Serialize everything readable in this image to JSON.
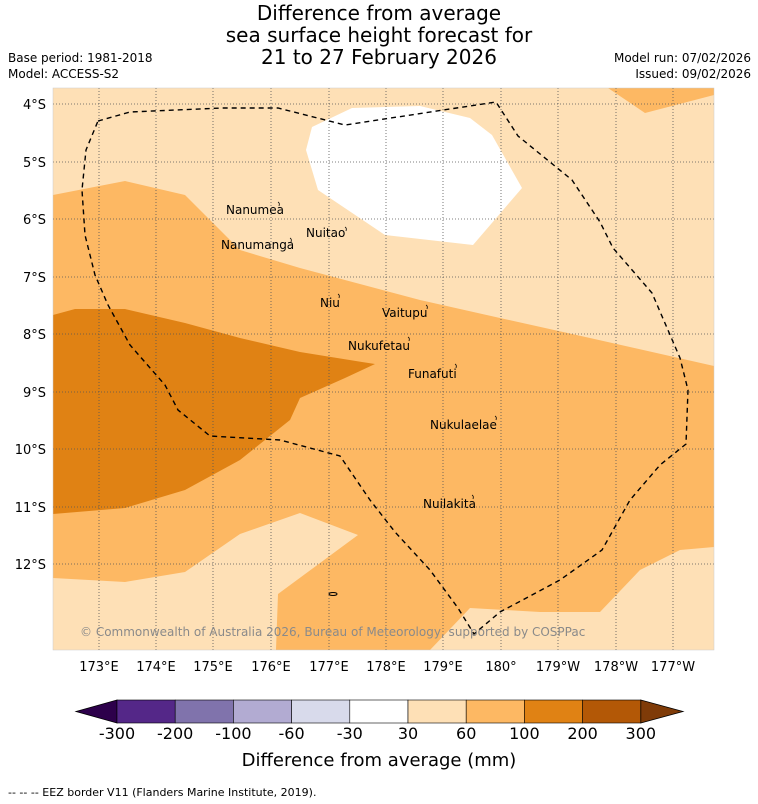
{
  "title": {
    "line1": "Difference from average",
    "line2": "sea surface height forecast for",
    "line3": "21 to 27 February 2026"
  },
  "meta": {
    "base_period": "Base period: 1981-2018",
    "model": "Model: ACCESS-S2",
    "model_run": "Model run: 07/02/2026",
    "issued": "Issued: 09/02/2026"
  },
  "map": {
    "lat_labels": [
      "4°S",
      "5°S",
      "6°S",
      "7°S",
      "8°S",
      "9°S",
      "10°S",
      "11°S",
      "12°S"
    ],
    "lon_labels": [
      "173°E",
      "174°E",
      "175°E",
      "176°E",
      "177°E",
      "178°E",
      "179°E",
      "180°",
      "179°W",
      "178°W",
      "177°W"
    ],
    "places": [
      {
        "name": "Nanumea"
      },
      {
        "name": "Nuitao"
      },
      {
        "name": "Nanumanga"
      },
      {
        "name": "Niu"
      },
      {
        "name": "Vaitupu"
      },
      {
        "name": "Nukufetau"
      },
      {
        "name": "Funafuti"
      },
      {
        "name": "Nukulaelae"
      },
      {
        "name": "Nuilakita"
      }
    ],
    "copyright": "© Commonwealth of Australia 2026, Bureau of Meteorology, supported by COSPPac"
  },
  "colorbar": {
    "title": "Difference from average (mm)",
    "ticks": [
      "-300",
      "-200",
      "-100",
      "-60",
      "-30",
      "30",
      "60",
      "100",
      "200",
      "300"
    ],
    "colors": {
      "below_min": "#2d004b",
      "c1": "#542788",
      "c2": "#8073ac",
      "c3": "#b2abd2",
      "c4": "#d8daeb",
      "c5": "#ffffff",
      "c6": "#fee0b6",
      "c7": "#fdb863",
      "c8": "#e08214",
      "c9": "#b35806",
      "above_max": "#7f3b08"
    }
  },
  "footer": "-- -- -- EEZ border V11 (Flanders Marine Institute, 2019)."
}
